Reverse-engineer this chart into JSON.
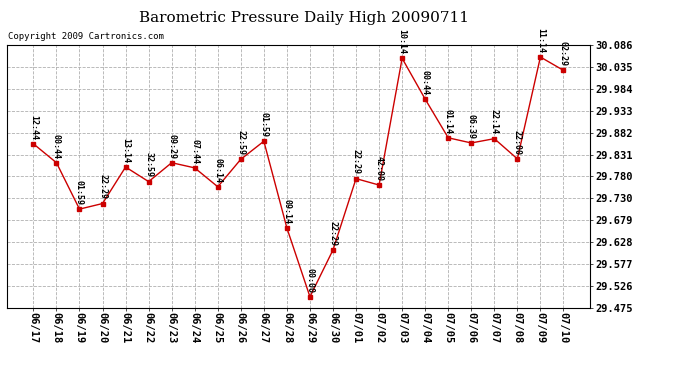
{
  "title": "Barometric Pressure Daily High 20090711",
  "copyright": "Copyright 2009 Cartronics.com",
  "background_color": "#ffffff",
  "plot_bg_color": "#ffffff",
  "grid_color": "#b0b0b0",
  "line_color": "#cc0000",
  "marker_color": "#cc0000",
  "text_color": "#000000",
  "x_labels": [
    "06/17",
    "06/18",
    "06/19",
    "06/20",
    "06/21",
    "06/22",
    "06/23",
    "06/24",
    "06/25",
    "06/26",
    "06/27",
    "06/28",
    "06/29",
    "06/30",
    "07/01",
    "07/02",
    "07/03",
    "07/04",
    "07/05",
    "07/06",
    "07/07",
    "07/08",
    "07/09",
    "07/10"
  ],
  "y_values": [
    29.856,
    29.812,
    29.704,
    29.717,
    29.802,
    29.768,
    29.812,
    29.8,
    29.756,
    29.82,
    29.862,
    29.66,
    29.5,
    29.609,
    29.775,
    29.76,
    30.055,
    29.96,
    29.87,
    29.858,
    29.868,
    29.821,
    30.058,
    30.027
  ],
  "annotations": [
    "12:44",
    "00:44",
    "01:59",
    "22:29",
    "13:14",
    "32:59",
    "09:29",
    "07:44",
    "06:14",
    "22:59",
    "01:59",
    "09:14",
    "00:00",
    "22:29",
    "22:29",
    "42:00",
    "10:14",
    "00:44",
    "01:14",
    "06:39",
    "22:14",
    "22:00",
    "11:14",
    "02:29"
  ],
  "ylim_min": 29.475,
  "ylim_max": 30.086,
  "yticks": [
    29.475,
    29.526,
    29.577,
    29.628,
    29.679,
    29.73,
    29.78,
    29.831,
    29.882,
    29.933,
    29.984,
    30.035,
    30.086
  ],
  "title_fontsize": 11,
  "annotation_fontsize": 6.0,
  "tick_fontsize": 7.5,
  "copyright_fontsize": 6.5
}
